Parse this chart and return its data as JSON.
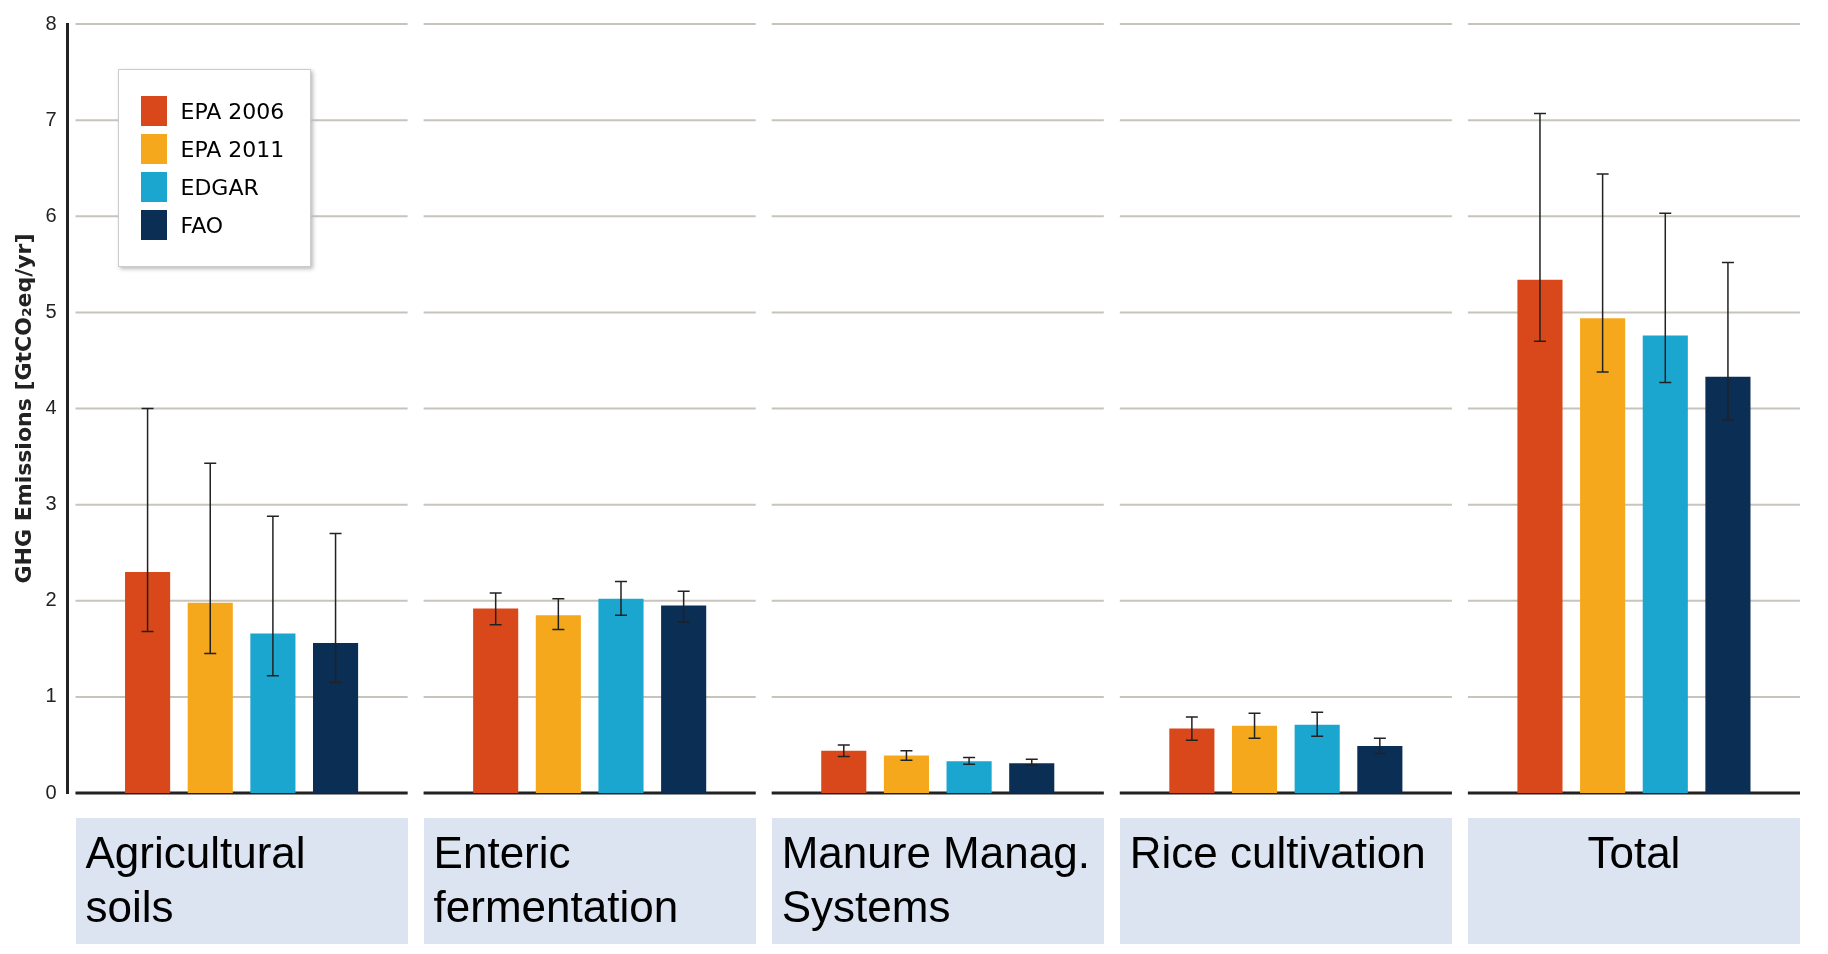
{
  "chart_data": {
    "type": "bar",
    "ylabel": "GHG Emissions [GtCO₂eq/yr]",
    "categories": [
      "Agricultural soils",
      "Enteric fermentation",
      "Manure Manag. Systems",
      "Rice cultivation",
      "Total"
    ],
    "series": [
      {
        "name": "EPA 2006",
        "color": "#d9481a",
        "values": [
          2.3,
          1.92,
          0.44,
          0.67,
          5.34
        ],
        "errors": [
          [
            1.68,
            4.0
          ],
          [
            1.75,
            2.08
          ],
          [
            0.38,
            0.5
          ],
          [
            0.55,
            0.79
          ],
          [
            4.7,
            7.07
          ]
        ]
      },
      {
        "name": "EPA 2011",
        "color": "#f5a81c",
        "values": [
          1.98,
          1.85,
          0.39,
          0.7,
          4.94
        ],
        "errors": [
          [
            1.45,
            3.43
          ],
          [
            1.7,
            2.02
          ],
          [
            0.34,
            0.44
          ],
          [
            0.57,
            0.83
          ],
          [
            4.38,
            6.44
          ]
        ]
      },
      {
        "name": "EDGAR",
        "color": "#1ba6cf",
        "values": [
          1.66,
          2.02,
          0.33,
          0.71,
          4.76
        ],
        "errors": [
          [
            1.22,
            2.88
          ],
          [
            1.85,
            2.2
          ],
          [
            0.3,
            0.37
          ],
          [
            0.59,
            0.84
          ],
          [
            4.27,
            6.03
          ]
        ]
      },
      {
        "name": "FAO",
        "color": "#0b2e55",
        "values": [
          1.56,
          1.95,
          0.31,
          0.49,
          4.33
        ],
        "errors": [
          [
            1.15,
            2.7
          ],
          [
            1.78,
            2.1
          ],
          [
            0.29,
            0.35
          ],
          [
            0.41,
            0.57
          ],
          [
            3.88,
            5.52
          ]
        ]
      }
    ],
    "ylim": [
      0,
      8
    ],
    "yticks": [
      0,
      1,
      2,
      3,
      4,
      5,
      6,
      7,
      8
    ],
    "grid": "y",
    "legend": "top left"
  }
}
